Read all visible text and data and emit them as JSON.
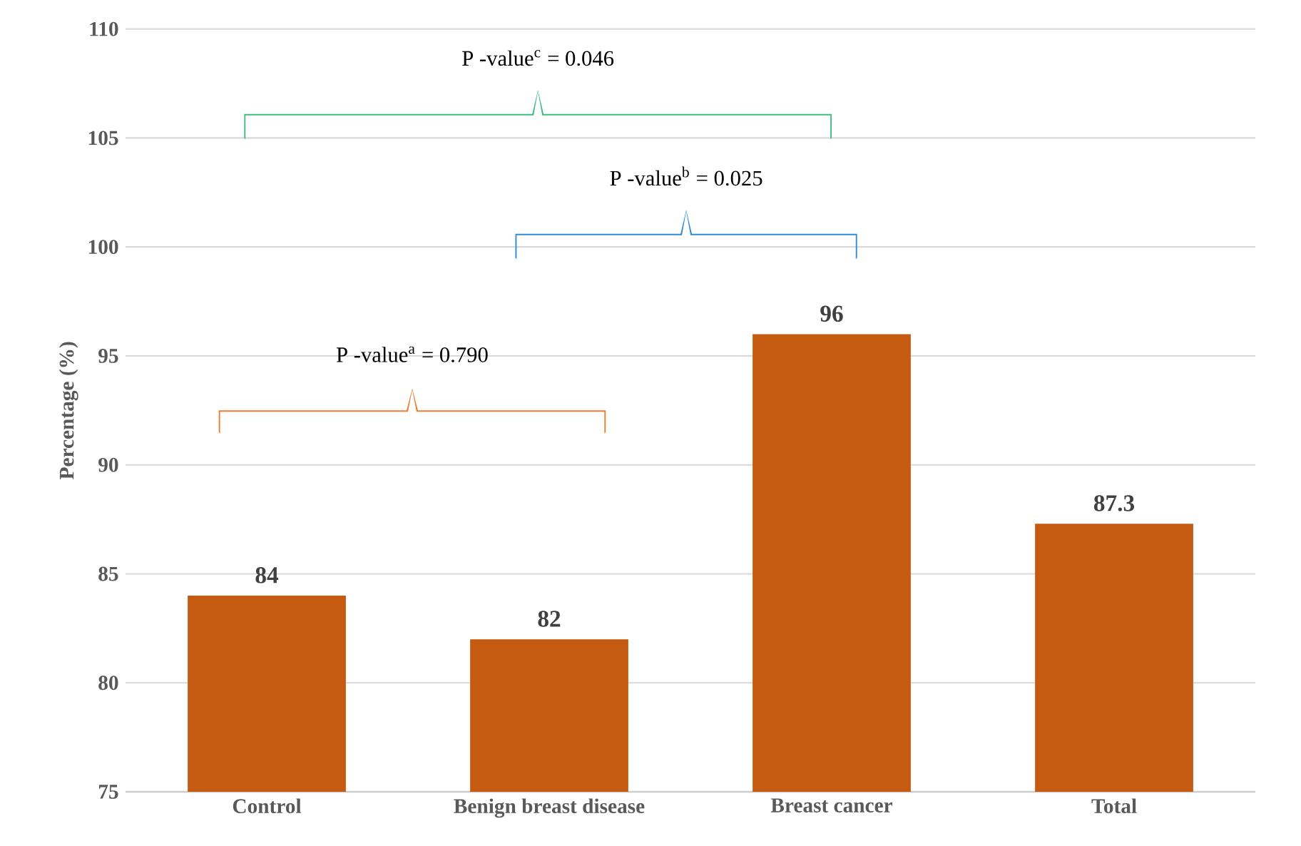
{
  "chart_data": {
    "type": "bar",
    "ylabel": "Percentage (%)",
    "categories": [
      "Control",
      "Benign breast disease",
      "Breast cancer",
      "Total"
    ],
    "values": [
      84,
      82,
      96,
      87.3
    ],
    "color": "#c55a11",
    "ylim": [
      75,
      110
    ],
    "yticks": [
      75,
      80,
      85,
      90,
      95,
      100,
      105,
      110
    ],
    "grid": "y",
    "data_labels": true,
    "annotations": [
      "P -value$^{a}$ = 0.790",
      "P -value$^{b}$ = 0.025",
      "P -value$^{c}$ = 0.046"
    ]
  }
}
